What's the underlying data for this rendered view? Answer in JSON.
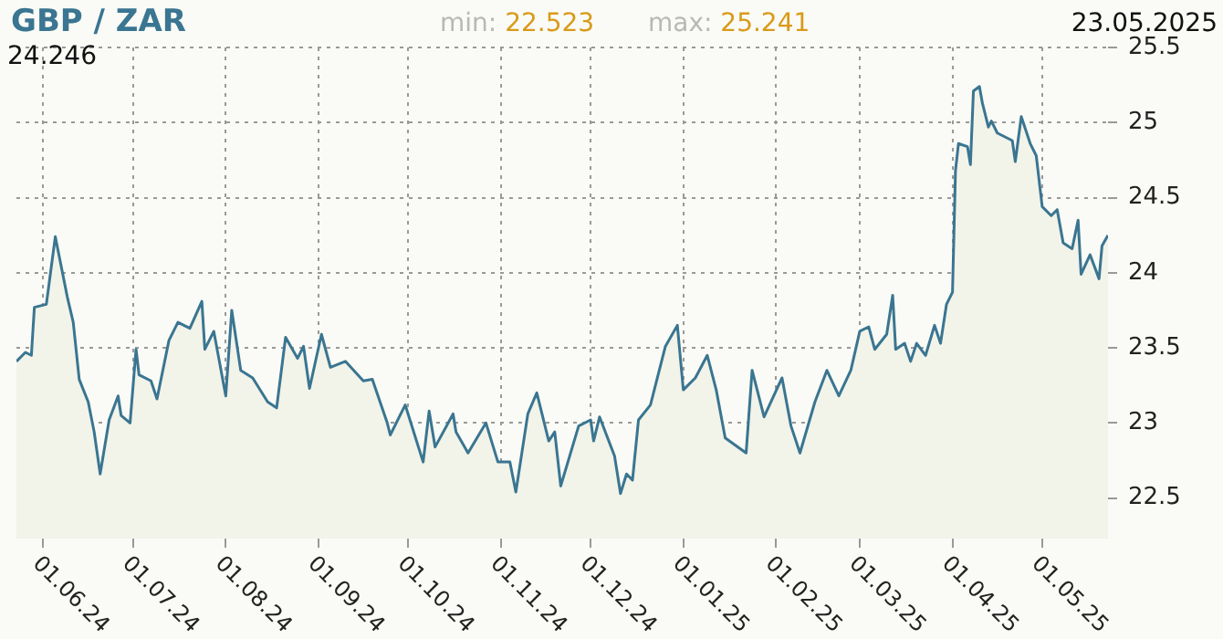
{
  "chart_data": {
    "type": "area",
    "title": "GBP / ZAR",
    "annotations": [
      "min: 22.523",
      "max: 25.241",
      "23.05.2025",
      "24.246"
    ],
    "x": [
      "2024-05-23",
      "2024-05-26",
      "2024-05-28",
      "2024-05-29",
      "2024-06-02",
      "2024-06-05",
      "2024-06-06",
      "2024-06-09",
      "2024-06-11",
      "2024-06-13",
      "2024-06-16",
      "2024-06-18",
      "2024-06-20",
      "2024-06-23",
      "2024-06-26",
      "2024-06-27",
      "2024-06-30",
      "2024-07-02",
      "2024-07-03",
      "2024-07-07",
      "2024-07-09",
      "2024-07-13",
      "2024-07-16",
      "2024-07-20",
      "2024-07-24",
      "2024-07-25",
      "2024-07-28",
      "2024-08-01",
      "2024-08-03",
      "2024-08-06",
      "2024-08-10",
      "2024-08-15",
      "2024-08-18",
      "2024-08-21",
      "2024-08-25",
      "2024-08-27",
      "2024-08-29",
      "2024-09-02",
      "2024-09-05",
      "2024-09-10",
      "2024-09-16",
      "2024-09-19",
      "2024-09-24",
      "2024-09-25",
      "2024-09-30",
      "2024-10-06",
      "2024-10-08",
      "2024-10-10",
      "2024-10-16",
      "2024-10-17",
      "2024-10-21",
      "2024-10-27",
      "2024-10-31",
      "2024-11-04",
      "2024-11-06",
      "2024-11-10",
      "2024-11-13",
      "2024-11-17",
      "2024-11-19",
      "2024-11-21",
      "2024-11-27",
      "2024-12-01",
      "2024-12-02",
      "2024-12-04",
      "2024-12-09",
      "2024-12-11",
      "2024-12-13",
      "2024-12-15",
      "2024-12-17",
      "2024-12-21",
      "2024-12-26",
      "2024-12-30",
      "2025-01-01",
      "2025-01-05",
      "2025-01-09",
      "2025-01-12",
      "2025-01-15",
      "2025-01-22",
      "2025-01-24",
      "2025-01-28",
      "2025-02-03",
      "2025-02-06",
      "2025-02-09",
      "2025-02-14",
      "2025-02-18",
      "2025-02-22",
      "2025-02-26",
      "2025-03-01",
      "2025-03-04",
      "2025-03-06",
      "2025-03-10",
      "2025-03-12",
      "2025-03-13",
      "2025-03-16",
      "2025-03-18",
      "2025-03-20",
      "2025-03-23",
      "2025-03-26",
      "2025-03-28",
      "2025-03-30",
      "2025-04-01",
      "2025-04-02",
      "2025-04-03",
      "2025-04-06",
      "2025-04-07",
      "2025-04-08",
      "2025-04-10",
      "2025-04-11",
      "2025-04-13",
      "2025-04-14",
      "2025-04-16",
      "2025-04-21",
      "2025-04-22",
      "2025-04-24",
      "2025-04-27",
      "2025-04-29",
      "2025-05-01",
      "2025-05-04",
      "2025-05-06",
      "2025-05-08",
      "2025-05-11",
      "2025-05-13",
      "2025-05-14",
      "2025-05-17",
      "2025-05-20",
      "2025-05-21",
      "2025-05-23"
    ],
    "series": [
      {
        "color": "#3a7591",
        "values": [
          23.41,
          23.47,
          23.45,
          23.77,
          23.79,
          24.24,
          24.14,
          23.84,
          23.67,
          23.29,
          23.14,
          22.94,
          22.66,
          23.02,
          23.18,
          23.05,
          23.0,
          23.49,
          23.32,
          23.28,
          23.16,
          23.55,
          23.67,
          23.63,
          23.81,
          23.49,
          23.61,
          23.18,
          23.75,
          23.35,
          23.3,
          23.14,
          23.1,
          23.57,
          23.43,
          23.51,
          23.23,
          23.59,
          23.37,
          23.41,
          23.28,
          23.29,
          23.0,
          22.92,
          23.12,
          22.74,
          23.08,
          22.84,
          23.06,
          22.94,
          22.8,
          23.0,
          22.74,
          22.74,
          22.54,
          23.06,
          23.2,
          22.88,
          22.94,
          22.58,
          22.98,
          23.02,
          22.88,
          23.04,
          22.78,
          22.53,
          22.66,
          22.62,
          23.02,
          23.12,
          23.51,
          23.65,
          23.22,
          23.3,
          23.45,
          23.22,
          22.9,
          22.8,
          23.35,
          23.04,
          23.3,
          22.98,
          22.8,
          23.14,
          23.35,
          23.18,
          23.35,
          23.61,
          23.64,
          23.49,
          23.59,
          23.85,
          23.49,
          23.53,
          23.41,
          23.53,
          23.45,
          23.65,
          23.53,
          23.79,
          23.87,
          24.68,
          24.86,
          24.84,
          24.72,
          25.21,
          25.24,
          25.13,
          24.97,
          25.01,
          24.93,
          24.88,
          24.74,
          25.04,
          24.86,
          24.78,
          24.44,
          24.38,
          24.42,
          24.2,
          24.16,
          24.35,
          23.99,
          24.12,
          23.96,
          24.18,
          24.25
        ]
      }
    ],
    "xlim": [
      "2024-05-23",
      "2025-05-23"
    ],
    "xticks": [
      {
        "value": "2024-06-01",
        "label": "01.06.24"
      },
      {
        "value": "2024-07-01",
        "label": "01.07.24"
      },
      {
        "value": "2024-08-01",
        "label": "01.08.24"
      },
      {
        "value": "2024-09-01",
        "label": "01.09.24"
      },
      {
        "value": "2024-10-01",
        "label": "01.10.24"
      },
      {
        "value": "2024-11-01",
        "label": "01.11.24"
      },
      {
        "value": "2024-12-01",
        "label": "01.12.24"
      },
      {
        "value": "2025-01-01",
        "label": "01.01.25"
      },
      {
        "value": "2025-02-01",
        "label": "01.02.25"
      },
      {
        "value": "2025-03-01",
        "label": "01.03.25"
      },
      {
        "value": "2025-04-01",
        "label": "01.04.25"
      },
      {
        "value": "2025-05-01",
        "label": "01.05.25"
      }
    ],
    "ylim": [
      22.23,
      25.5
    ],
    "yticks": [
      22.5,
      23,
      23.5,
      24,
      24.5,
      25,
      25.5
    ],
    "grid": true,
    "legend": false,
    "marker": "none",
    "line_style": "solid"
  }
}
